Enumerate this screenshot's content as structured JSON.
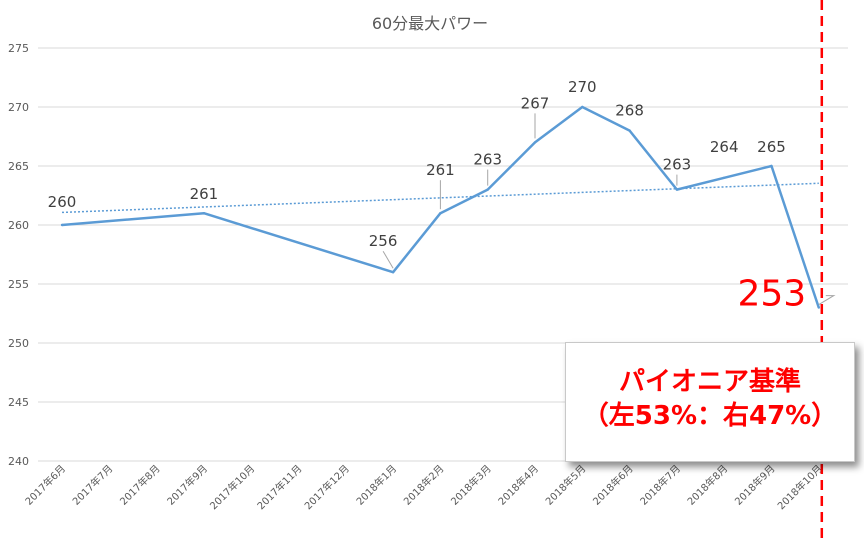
{
  "chart_data": {
    "type": "line",
    "title": "60分最大パワー",
    "categories": [
      "2017年6月",
      "2017年7月",
      "2017年8月",
      "2017年9月",
      "2017年10月",
      "2017年11月",
      "2017年12月",
      "2018年1月",
      "2018年2月",
      "2018年3月",
      "2018年4月",
      "2018年5月",
      "2018年6月",
      "2018年7月",
      "2018年8月",
      "2018年9月",
      "2018年10月"
    ],
    "series": [
      {
        "values": [
          260,
          null,
          null,
          261,
          null,
          null,
          null,
          256,
          261,
          263,
          267,
          270,
          268,
          263,
          264,
          265,
          253
        ],
        "color": "#5b9bd5"
      }
    ],
    "data_labels": [
      {
        "index": 0,
        "text": "260"
      },
      {
        "index": 3,
        "text": "261"
      },
      {
        "index": 7,
        "text": "256"
      },
      {
        "index": 8,
        "text": "261"
      },
      {
        "index": 9,
        "text": "263"
      },
      {
        "index": 10,
        "text": "267"
      },
      {
        "index": 11,
        "text": "270"
      },
      {
        "index": 12,
        "text": "268"
      },
      {
        "index": 13,
        "text": "263"
      },
      {
        "index": 14,
        "text": "264"
      },
      {
        "index": 15,
        "text": "265"
      },
      {
        "index": 16,
        "text": "253",
        "highlight": true
      }
    ],
    "trendline": {
      "type": "linear",
      "style": "dotted",
      "color": "#5b9bd5"
    },
    "reference_line": {
      "at": "2018年10月",
      "style": "dashed",
      "color": "#ff0000"
    },
    "y_ticks": [
      240,
      245,
      250,
      255,
      260,
      265,
      270,
      275
    ],
    "ylim": [
      240,
      275
    ],
    "grid": true,
    "xlabel": "",
    "ylabel": ""
  },
  "callout": {
    "line1": "パイオニア基準",
    "line2": "（左53%：右47%）",
    "color": "#ff0000"
  }
}
